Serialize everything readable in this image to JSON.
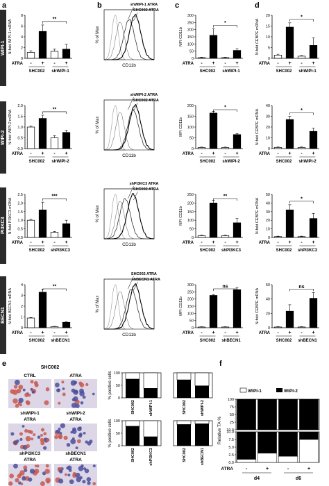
{
  "panel_letters": {
    "a": "a",
    "b": "b",
    "c": "c",
    "d": "d",
    "e": "e",
    "f": "f"
  },
  "rows": [
    {
      "side": "WIPI-1",
      "a": {
        "ylabel": "N-fold WIPI-1 mRNA",
        "yticks": [
          "0",
          "2",
          "4",
          "6",
          "8"
        ],
        "ymax": 8,
        "values": [
          1.1,
          5.0,
          1.3,
          1.7
        ],
        "errors": [
          0.3,
          1.2,
          0.4,
          0.9
        ],
        "sig": "**",
        "groups": [
          "SHC002",
          "shWIPI-1"
        ]
      },
      "b": {
        "labels": [
          "shWIPI-1 ATRA",
          "SHC002 ATRA"
        ],
        "ylabel": "% of Max",
        "xlabel": "CD11b"
      },
      "c": {
        "ylabel": "MFI CD11b",
        "yticks": [
          "0",
          "50",
          "100",
          "150",
          "200",
          "250",
          "300"
        ],
        "ymax": 300,
        "values": [
          5,
          160,
          5,
          55
        ],
        "errors": [
          3,
          45,
          3,
          12
        ],
        "sig": "*",
        "groups": [
          "SHC002",
          "shWIPI-1"
        ]
      },
      "d": {
        "ylabel": "N-fold CEBPE mRNA",
        "yticks": [
          "0",
          "5",
          "10",
          "15",
          "20"
        ],
        "ymax": 20,
        "values": [
          1.5,
          14.5,
          1.0,
          6.0
        ],
        "errors": [
          0.4,
          2.0,
          0.3,
          3.5
        ],
        "sig": "*",
        "groups": [
          "SHC002",
          "shWIPI-1"
        ]
      }
    },
    {
      "side": "WIPI-2",
      "a": {
        "ylabel": "N-fold WIPI-2 mRNA",
        "yticks": [
          "0.0",
          "0.5",
          "1.0",
          "1.5",
          "2.0"
        ],
        "ymax": 2.0,
        "values": [
          1.0,
          1.4,
          0.5,
          0.75
        ],
        "errors": [
          0.05,
          0.15,
          0.1,
          0.1
        ],
        "sig": "**",
        "groups": [
          "SHC002",
          "shWIPI-2"
        ]
      },
      "b": {
        "labels": [
          "shWIPI-2 ATRA",
          "SHC002 ATRA"
        ],
        "ylabel": "% of Max",
        "xlabel": "CD11b"
      },
      "c": {
        "ylabel": "MFI CD11b",
        "yticks": [
          "0",
          "50",
          "100",
          "150",
          "200"
        ],
        "ymax": 200,
        "values": [
          5,
          165,
          5,
          65
        ],
        "errors": [
          2,
          8,
          2,
          5
        ],
        "sig": "*",
        "groups": [
          "SHC002",
          "shWIPI-2"
        ]
      },
      "d": {
        "ylabel": "N-fold CEBPE mRNA",
        "yticks": [
          "0",
          "10",
          "20",
          "30",
          "40"
        ],
        "ymax": 40,
        "values": [
          1,
          27,
          1,
          16
        ],
        "errors": [
          0.5,
          3,
          0.5,
          3
        ],
        "sig": "*",
        "groups": [
          "SHC002",
          "shWIPI-2"
        ]
      }
    },
    {
      "side": "PI3KC3",
      "a": {
        "ylabel": "N-fold PI3KC3 mRNA",
        "yticks": [
          "0.0",
          "0.5",
          "1.0",
          "1.5",
          "2.0",
          "2.5"
        ],
        "ymax": 2.5,
        "values": [
          1.0,
          1.6,
          0.3,
          0.8
        ],
        "errors": [
          0.05,
          0.45,
          0.05,
          0.2
        ],
        "sig": "***",
        "groups": [
          "SHC002",
          "shPI3KC3"
        ]
      },
      "b": {
        "labels": [
          "shPI3KC3 ATRA",
          "SHC002 ATRA"
        ],
        "ylabel": "% of Max",
        "xlabel": "CD11b"
      },
      "c": {
        "ylabel": "MFI CD11b",
        "yticks": [
          "0",
          "50",
          "100",
          "150",
          "200",
          "250"
        ],
        "ymax": 250,
        "values": [
          10,
          200,
          10,
          85
        ],
        "errors": [
          3,
          15,
          3,
          25
        ],
        "sig": "**",
        "groups": [
          "SHC002",
          "shPI3KC3"
        ]
      },
      "d": {
        "ylabel": "N-fold CEBPE mRNA",
        "yticks": [
          "0",
          "10",
          "20",
          "30",
          "40",
          "50"
        ],
        "ymax": 50,
        "values": [
          1,
          32,
          1,
          22
        ],
        "errors": [
          0.5,
          6,
          0.5,
          6
        ],
        "sig": "*",
        "groups": [
          "SHC002",
          "shPI3KC3"
        ]
      }
    },
    {
      "side": "BECN1",
      "a": {
        "ylabel": "N-fold BECN1 mRNA",
        "yticks": [
          "0",
          "1",
          "2",
          "3",
          "4"
        ],
        "ymax": 4,
        "values": [
          0.9,
          3.3,
          0.1,
          0.5
        ],
        "errors": [
          0.05,
          0.25,
          0.03,
          0.05
        ],
        "sig": "**",
        "groups": [
          "SHC002",
          "shBECN1"
        ]
      },
      "b": {
        "labels": [
          "SHC002 ATRA",
          "shBECN1 ATRA"
        ],
        "ylabel": "% of Max",
        "xlabel": "CD11b"
      },
      "c": {
        "ylabel": "MFI CD11b",
        "yticks": [
          "0",
          "50",
          "100",
          "150",
          "200",
          "250",
          "300"
        ],
        "ymax": 300,
        "values": [
          5,
          225,
          5,
          265
        ],
        "errors": [
          2,
          5,
          2,
          15
        ],
        "sig": "ns",
        "groups": [
          "SHC002",
          "shBECN1"
        ]
      },
      "d": {
        "ylabel": "N-fold CEBPE mRNA",
        "yticks": [
          "0",
          "20",
          "40",
          "60"
        ],
        "ymax": 60,
        "values": [
          1,
          23,
          1,
          41
        ],
        "errors": [
          0.5,
          9,
          0.5,
          8
        ],
        "sig": "ns",
        "groups": [
          "SHC002",
          "shBECN1"
        ]
      }
    }
  ],
  "atra_label": "ATRA",
  "atra_signs": [
    "-",
    "+",
    "-",
    "+"
  ],
  "panel_e": {
    "header": "SHC002",
    "micro_labels": [
      "CTRL",
      "ATRA",
      "shWIPI-1",
      "shWIPI-2",
      "ATRA",
      "ATRA",
      "shPI3KC3",
      "shBECN1",
      "ATRA",
      "ATRA"
    ],
    "ylabel": "% positive cells",
    "stacked": [
      {
        "categories": [
          "SHC002",
          "shWIPI-1"
        ],
        "filled": [
          75,
          38
        ]
      },
      {
        "categories": [
          "SHC002",
          "shWIPI-2"
        ],
        "filled": [
          72,
          48
        ]
      },
      {
        "categories": [
          "SHC002",
          "shPI3KC3"
        ],
        "filled": [
          78,
          36
        ]
      },
      {
        "categories": [
          "SHC002",
          "shBECN1"
        ],
        "filled": [
          85,
          88
        ]
      }
    ],
    "yticks": [
      "0",
      "50",
      "100"
    ]
  },
  "panel_f": {
    "legend": [
      "WIPI-1",
      "WIPI-2"
    ],
    "ylabel": "Relative TA %",
    "upper_ticks": [
      "10.0",
      "25",
      "50",
      "75",
      "100"
    ],
    "lower_ticks": [
      "0.0",
      "2.5",
      "5.0",
      "7.5",
      "10.0"
    ],
    "atra_signs": [
      "-",
      "+",
      "-",
      "+"
    ],
    "days": [
      "d4",
      "d6"
    ],
    "wipi1_pct": [
      1,
      3,
      2,
      7.5
    ]
  },
  "colors": {
    "dark": "#000000",
    "light": "#ffffff",
    "band": "#2b2b2b"
  }
}
